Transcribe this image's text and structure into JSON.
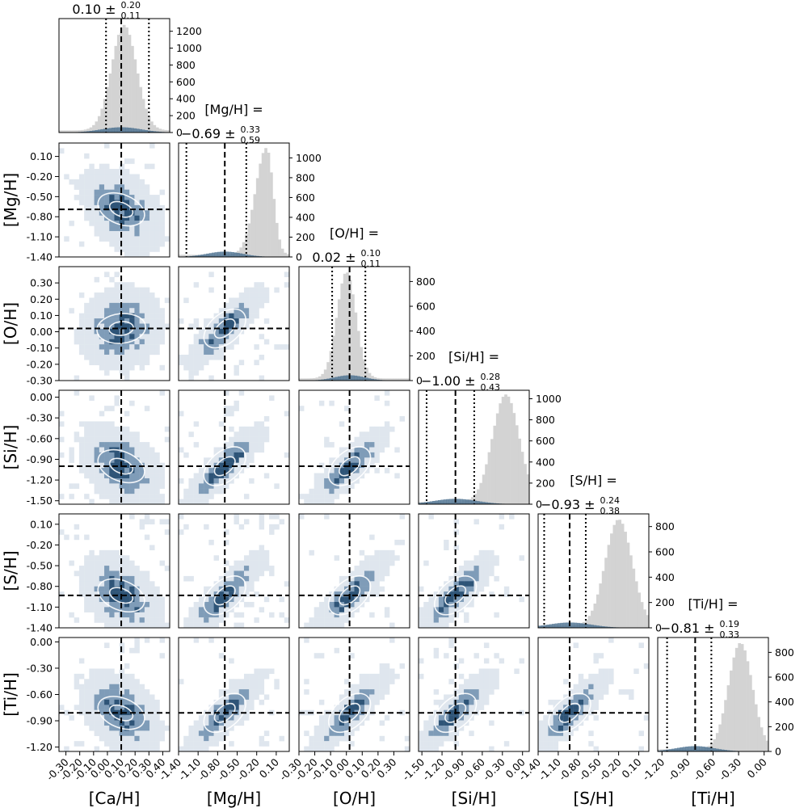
{
  "chart_data": {
    "type": "corner",
    "colors": {
      "hist_fill": "#d3d3d3",
      "hist_overlay": "#4a6f8f",
      "density_dark": "#2e5477",
      "density_light": "#dfe6ee",
      "contour": "#ffffff",
      "line": "#000000"
    },
    "parameters": [
      {
        "label": "[Ca/H]",
        "range": [
          -0.35,
          0.45
        ],
        "ticks": [
          "-0.30",
          "-0.20",
          "-0.10",
          "0.00",
          "0.10",
          "0.20",
          "0.30",
          "0.40"
        ],
        "tick_values": [
          -0.3,
          -0.2,
          -0.1,
          0.0,
          0.1,
          0.2,
          0.3,
          0.4
        ],
        "median": 0.1,
        "lower": -0.01,
        "upper": 0.3,
        "title_main": "0.10",
        "title_sup": "0.20",
        "title_sub": "0.11",
        "hist_mode": 0.12,
        "hist_width": 0.09,
        "hist_peak": 1250,
        "hist_skew": 0.0,
        "hist_ymax": 1350,
        "hist_ticks": [
          0,
          200,
          400,
          600,
          800,
          1000,
          1200
        ]
      },
      {
        "label": "[Mg/H]",
        "range": [
          -1.4,
          0.3
        ],
        "ticks": [
          "-1.40",
          "-1.10",
          "-0.80",
          "-0.50",
          "-0.20",
          "0.10"
        ],
        "tick_values": [
          -1.4,
          -1.1,
          -0.8,
          -0.5,
          -0.2,
          0.1
        ],
        "median": -0.69,
        "lower": -1.28,
        "upper": -0.36,
        "title_prefix": "[Mg/H] =",
        "title_main": "−0.69",
        "title_sup": "0.33",
        "title_sub": "0.59",
        "hist_mode": -0.05,
        "hist_width": 0.17,
        "hist_peak": 1080,
        "hist_skew": -0.12,
        "hist_ymax": 1150,
        "hist_ticks": [
          0,
          200,
          400,
          600,
          800,
          1000
        ]
      },
      {
        "label": "[O/H]",
        "range": [
          -0.3,
          0.4
        ],
        "ticks": [
          "-0.30",
          "-0.20",
          "-0.10",
          "0.00",
          "0.10",
          "0.20",
          "0.30"
        ],
        "tick_values": [
          -0.3,
          -0.2,
          -0.1,
          0.0,
          0.1,
          0.2,
          0.3
        ],
        "median": 0.02,
        "lower": -0.09,
        "upper": 0.12,
        "title_prefix": "[O/H] =",
        "title_main": "0.02",
        "title_sup": "0.10",
        "title_sub": "0.11",
        "hist_mode": 0.0,
        "hist_width": 0.06,
        "hist_peak": 860,
        "hist_skew": 0.0,
        "hist_ymax": 920,
        "hist_ticks": [
          0,
          200,
          400,
          600,
          800
        ]
      },
      {
        "label": "[Si/H]",
        "range": [
          -1.55,
          0.1
        ],
        "ticks": [
          "-1.50",
          "-1.20",
          "-0.90",
          "-0.60",
          "-0.30",
          "0.00"
        ],
        "tick_values": [
          -1.5,
          -1.2,
          -0.9,
          -0.6,
          -0.3,
          0.0
        ],
        "median": -1.0,
        "lower": -1.43,
        "upper": -0.72,
        "title_prefix": "[Si/H] =",
        "title_main": "−1.00",
        "title_sup": "0.28",
        "title_sub": "0.43",
        "hist_mode": -0.25,
        "hist_width": 0.2,
        "hist_peak": 1020,
        "hist_skew": 0.0,
        "hist_ymax": 1080,
        "hist_ticks": [
          0,
          200,
          400,
          600,
          800,
          1000
        ]
      },
      {
        "label": "[S/H]",
        "range": [
          -1.4,
          0.25
        ],
        "ticks": [
          "-1.40",
          "-1.10",
          "-0.80",
          "-0.50",
          "-0.20",
          "0.10"
        ],
        "tick_values": [
          -1.4,
          -1.1,
          -0.8,
          -0.5,
          -0.2,
          0.1
        ],
        "median": -0.93,
        "lower": -1.31,
        "upper": -0.69,
        "title_prefix": "[S/H] =",
        "title_main": "−0.93",
        "title_sup": "0.24",
        "title_sub": "0.38",
        "hist_mode": -0.2,
        "hist_width": 0.2,
        "hist_peak": 840,
        "hist_skew": 0.0,
        "hist_ymax": 900,
        "hist_ticks": [
          0,
          200,
          400,
          600,
          800
        ]
      },
      {
        "label": "[Ti/H]",
        "range": [
          -1.25,
          0.05
        ],
        "ticks": [
          "-1.20",
          "-0.90",
          "-0.60",
          "-0.30",
          "0.00"
        ],
        "tick_values": [
          -1.2,
          -0.9,
          -0.6,
          -0.3,
          0.0
        ],
        "median": -0.81,
        "lower": -1.14,
        "upper": -0.62,
        "title_prefix": "[Ti/H] =",
        "title_main": "−0.81",
        "title_sup": "0.19",
        "title_sub": "0.33",
        "hist_mode": -0.28,
        "hist_width": 0.14,
        "hist_peak": 860,
        "hist_skew": 0.0,
        "hist_ymax": 920,
        "hist_ticks": [
          0,
          200,
          400,
          600,
          800
        ]
      }
    ]
  }
}
